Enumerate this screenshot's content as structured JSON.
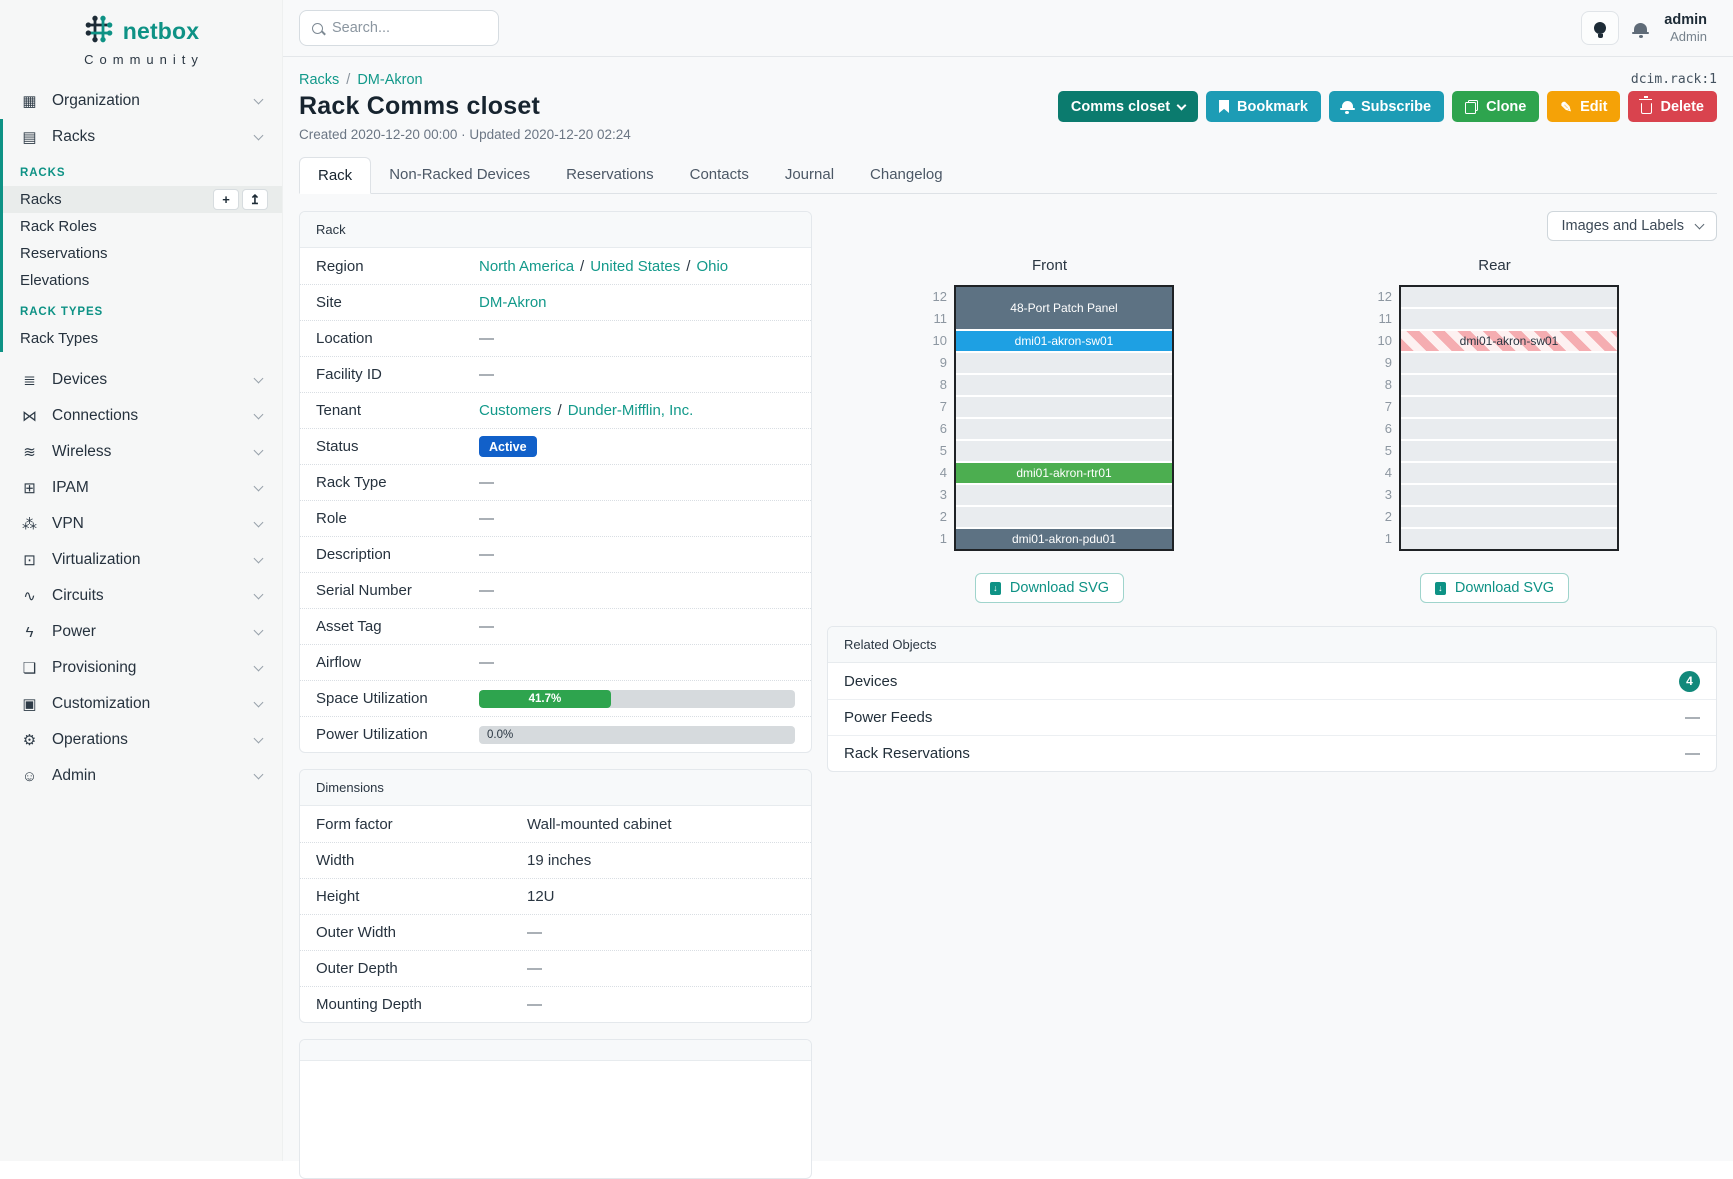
{
  "theme": {
    "teal": "#0e9285",
    "teal-dark": "#0b7b6e",
    "link": "#12998a",
    "cyan": "#1d9cb5",
    "green": "#2ea44e",
    "orange": "#f5a207",
    "red": "#d9434e",
    "blue": "#1160c9",
    "badge-teal": "#12897b",
    "device-slate": "#5d7283",
    "device-blue": "#1ea0e3",
    "device-green": "#4cae50"
  },
  "brand": {
    "name": "netbox",
    "community": "Community"
  },
  "topbar": {
    "search_placeholder": "Search...",
    "username": "admin",
    "role": "Admin"
  },
  "object_id": "dcim.rack:1",
  "breadcrumb": [
    "Racks",
    "DM-Akron"
  ],
  "page": {
    "title": "Rack Comms closet",
    "meta": "Created 2020-12-20 00:00 · Updated 2020-12-20 02:24"
  },
  "actions": [
    {
      "label": "Comms closet",
      "style": "group",
      "chevron": true,
      "name": "comms-closet-dropdown"
    },
    {
      "label": "Bookmark",
      "style": "cyan",
      "icon": "bookmark",
      "name": "bookmark-button"
    },
    {
      "label": "Subscribe",
      "style": "cyan",
      "icon": "bell",
      "name": "subscribe-button"
    },
    {
      "label": "Clone",
      "style": "green",
      "icon": "copy",
      "name": "clone-button"
    },
    {
      "label": "Edit",
      "style": "orange",
      "icon": "pencil",
      "name": "edit-button"
    },
    {
      "label": "Delete",
      "style": "red",
      "icon": "trash",
      "name": "delete-button"
    }
  ],
  "tabs": [
    {
      "label": "Rack",
      "active": true
    },
    {
      "label": "Non-Racked Devices"
    },
    {
      "label": "Reservations"
    },
    {
      "label": "Contacts"
    },
    {
      "label": "Journal"
    },
    {
      "label": "Changelog"
    }
  ],
  "sidebar": {
    "items": [
      {
        "label": "Organization",
        "icon": "organization-icon",
        "glyph": "▦"
      },
      {
        "label": "Racks",
        "icon": "racks-icon",
        "glyph": "▤",
        "expanded": true,
        "sections": [
          {
            "header": "RACKS",
            "links": [
              {
                "label": "Racks",
                "active": true,
                "buttons": [
                  {
                    "name": "add-button",
                    "glyph": "+"
                  },
                  {
                    "name": "import-button",
                    "glyph": "↥"
                  }
                ]
              },
              {
                "label": "Rack Roles"
              },
              {
                "label": "Reservations"
              },
              {
                "label": "Elevations"
              }
            ]
          },
          {
            "header": "RACK TYPES",
            "links": [
              {
                "label": "Rack Types"
              }
            ]
          }
        ]
      },
      {
        "label": "Devices",
        "icon": "devices-icon",
        "glyph": "≣"
      },
      {
        "label": "Connections",
        "icon": "connections-icon",
        "glyph": "⋈"
      },
      {
        "label": "Wireless",
        "icon": "wireless-icon",
        "glyph": "≋"
      },
      {
        "label": "IPAM",
        "icon": "ipam-icon",
        "glyph": "⊞"
      },
      {
        "label": "VPN",
        "icon": "vpn-icon",
        "glyph": "⁂"
      },
      {
        "label": "Virtualization",
        "icon": "virtualization-icon",
        "glyph": "⊡"
      },
      {
        "label": "Circuits",
        "icon": "circuits-icon",
        "glyph": "∿"
      },
      {
        "label": "Power",
        "icon": "power-icon",
        "glyph": "ϟ"
      },
      {
        "label": "Provisioning",
        "icon": "provisioning-icon",
        "glyph": "❏"
      },
      {
        "label": "Customization",
        "icon": "customization-icon",
        "glyph": "▣"
      },
      {
        "label": "Operations",
        "icon": "operations-icon",
        "glyph": "⚙"
      },
      {
        "label": "Admin",
        "icon": "admin-icon",
        "glyph": "☺"
      }
    ]
  },
  "rack_panel": {
    "title": "Rack",
    "rows": [
      {
        "label": "Region",
        "type": "links",
        "parts": [
          "North America",
          "United States",
          "Ohio"
        ]
      },
      {
        "label": "Site",
        "type": "links",
        "parts": [
          "DM-Akron"
        ]
      },
      {
        "label": "Location",
        "type": "dash"
      },
      {
        "label": "Facility ID",
        "type": "dash"
      },
      {
        "label": "Tenant",
        "type": "links",
        "parts": [
          "Customers",
          "Dunder-Mifflin, Inc."
        ]
      },
      {
        "label": "Status",
        "type": "badge",
        "value": "Active"
      },
      {
        "label": "Rack Type",
        "type": "dash"
      },
      {
        "label": "Role",
        "type": "dash"
      },
      {
        "label": "Description",
        "type": "dash"
      },
      {
        "label": "Serial Number",
        "type": "dash"
      },
      {
        "label": "Asset Tag",
        "type": "dash"
      },
      {
        "label": "Airflow",
        "type": "dash"
      },
      {
        "label": "Space Utilization",
        "type": "progress",
        "percent": 41.7,
        "text": "41.7%"
      },
      {
        "label": "Power Utilization",
        "type": "progress",
        "percent": 0,
        "text": "0.0%"
      }
    ]
  },
  "dimensions_panel": {
    "title": "Dimensions",
    "rows": [
      {
        "label": "Form factor",
        "type": "text",
        "value": "Wall-mounted cabinet"
      },
      {
        "label": "Width",
        "type": "text",
        "value": "19 inches"
      },
      {
        "label": "Height",
        "type": "text",
        "value": "12U"
      },
      {
        "label": "Outer Width",
        "type": "dash"
      },
      {
        "label": "Outer Depth",
        "type": "dash"
      },
      {
        "label": "Mounting Depth",
        "type": "dash"
      }
    ]
  },
  "elevations": {
    "toggle_label": "Images and Labels",
    "download_label": "Download SVG",
    "unit_count": 12,
    "views": [
      {
        "title": "Front",
        "segments": [
          {
            "units": 2,
            "label": "48-Port Patch Panel",
            "color": "slate"
          },
          {
            "units": 1,
            "label": "dmi01-akron-sw01",
            "color": "blue"
          },
          {
            "units": 5,
            "empty": true
          },
          {
            "units": 1,
            "label": "dmi01-akron-rtr01",
            "color": "green"
          },
          {
            "units": 2,
            "empty": true
          },
          {
            "units": 1,
            "label": "dmi01-akron-pdu01",
            "color": "slate"
          }
        ]
      },
      {
        "title": "Rear",
        "segments": [
          {
            "units": 2,
            "empty": true
          },
          {
            "units": 1,
            "label": "dmi01-akron-sw01",
            "striped": true
          },
          {
            "units": 9,
            "empty": true
          }
        ]
      }
    ]
  },
  "related_panel": {
    "title": "Related Objects",
    "rows": [
      {
        "label": "Devices",
        "badge": "4"
      },
      {
        "label": "Power Feeds",
        "dash": true
      },
      {
        "label": "Rack Reservations",
        "dash": true
      }
    ]
  }
}
